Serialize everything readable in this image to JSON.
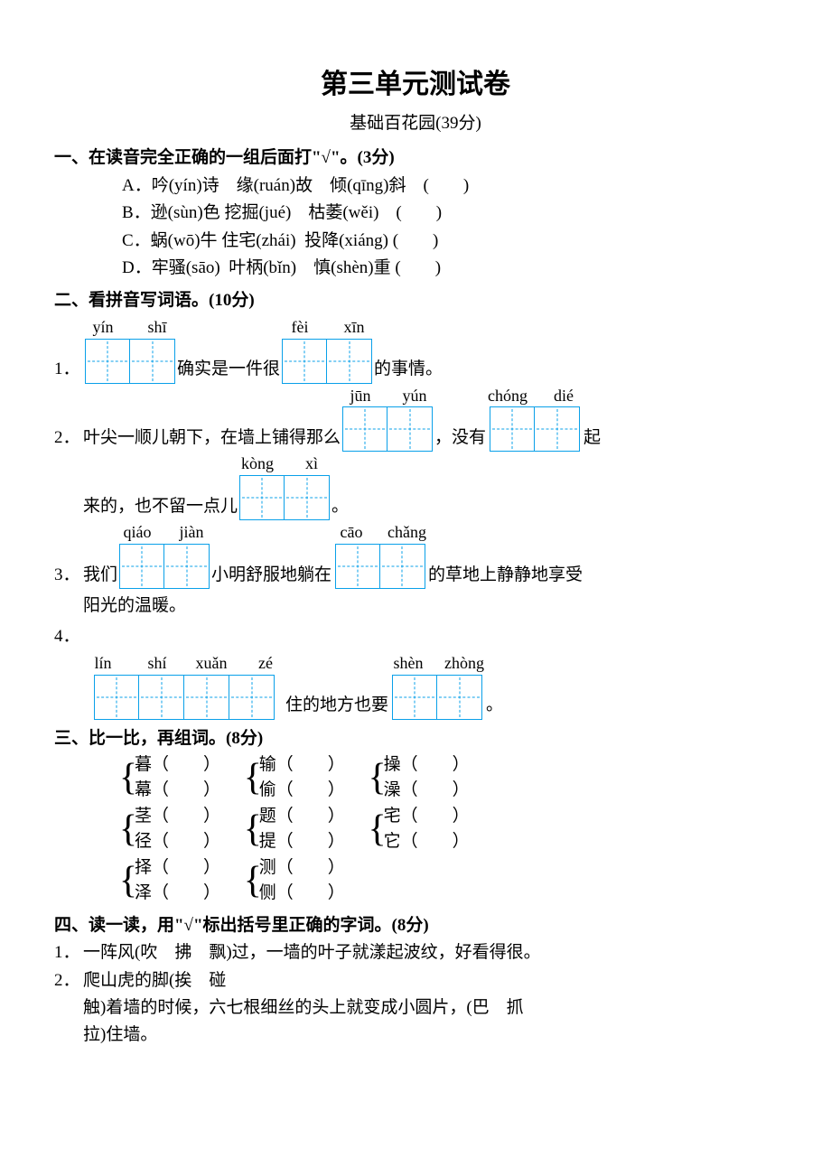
{
  "color": {
    "box_border": "#09a0e9",
    "text": "#000000",
    "bg": "#ffffff"
  },
  "title": "第三单元测试卷",
  "subtitle": "基础百花园(39分)",
  "font": {
    "title_size": 30,
    "body_size": 19
  },
  "s1": {
    "heading": "一、在读音完全正确的一组后面打\"√\"。(3分)",
    "options": [
      "A．吟(yín)诗　缘(ruán)故　倾(qīng)斜　(　　)",
      "B．逊(sùn)色 挖掘(jué)　枯萎(wěi)　(　　)",
      "C．蜗(wō)牛 住宅(zhái)  投降(xiáng) (　　)",
      "D．牢骚(sāo)  叶柄(bǐn)　慎(shèn)重 (　　)"
    ]
  },
  "s2": {
    "heading": "二、看拼音写词语。(10分)",
    "q1": {
      "num": "1．",
      "b1": {
        "pinyin": [
          "yín",
          "shī"
        ],
        "len": 2
      },
      "t1": "确实是一件很",
      "b2": {
        "pinyin": [
          "fèi",
          "xīn"
        ],
        "len": 2
      },
      "t2": "的事情。"
    },
    "q2": {
      "num": "2．",
      "t0": "叶尖一顺儿朝下，在墙上铺得那么",
      "b1": {
        "pinyin": [
          "jūn",
          "yún"
        ],
        "len": 2
      },
      "t1": "，没有",
      "b2": {
        "pinyin": [
          "chóng",
          "dié"
        ],
        "len": 2
      },
      "t2": "起",
      "line2a": "来的，也不留一点儿",
      "b3": {
        "pinyin": [
          "kòng",
          "xì"
        ],
        "len": 2
      },
      "line2b": "。"
    },
    "q3": {
      "num": "3．",
      "t0": "我们",
      "b1": {
        "pinyin": [
          "qiáo",
          "jiàn"
        ],
        "len": 2
      },
      "t1": "小明舒服地躺在",
      "b2": {
        "pinyin": [
          "cāo",
          "chǎng"
        ],
        "len": 2
      },
      "t2": "的草地上静静地享受",
      "line2": "阳光的温暖。"
    },
    "q4": {
      "num": "4．",
      "b1": {
        "pinyin": [
          "lín",
          "shí",
          "xuǎn",
          "zé"
        ],
        "len": 4
      },
      "t1": "住的地方也要",
      "b2": {
        "pinyin": [
          "shèn",
          "zhòng"
        ],
        "len": 2
      },
      "t2": "。"
    }
  },
  "s3": {
    "heading": "三、比一比，再组词。(8分)",
    "rows": [
      [
        {
          "a": "暮",
          "b": "幕"
        },
        {
          "a": "输",
          "b": "偷"
        },
        {
          "a": "操",
          "b": "澡"
        }
      ],
      [
        {
          "a": "茎",
          "b": "径"
        },
        {
          "a": "题",
          "b": "提"
        },
        {
          "a": "宅",
          "b": "它"
        }
      ],
      [
        {
          "a": "择",
          "b": "泽"
        },
        {
          "a": "测",
          "b": "侧"
        }
      ]
    ],
    "blank": "（　　）"
  },
  "s4": {
    "heading": "四、读一读，用\"√\"标出括号里正确的字词。(8分)",
    "q1": {
      "num": "1．",
      "text": "一阵风(吹　拂　飘)过，一墙的叶子就漾起波纹，好看得很。"
    },
    "q2": {
      "num": "2．",
      "l1": "爬山虎的脚(挨　碰",
      "l2": "触)着墙的时候，六七根细丝的头上就变成小圆片，(巴　抓",
      "l3": "拉)住墙。"
    }
  }
}
